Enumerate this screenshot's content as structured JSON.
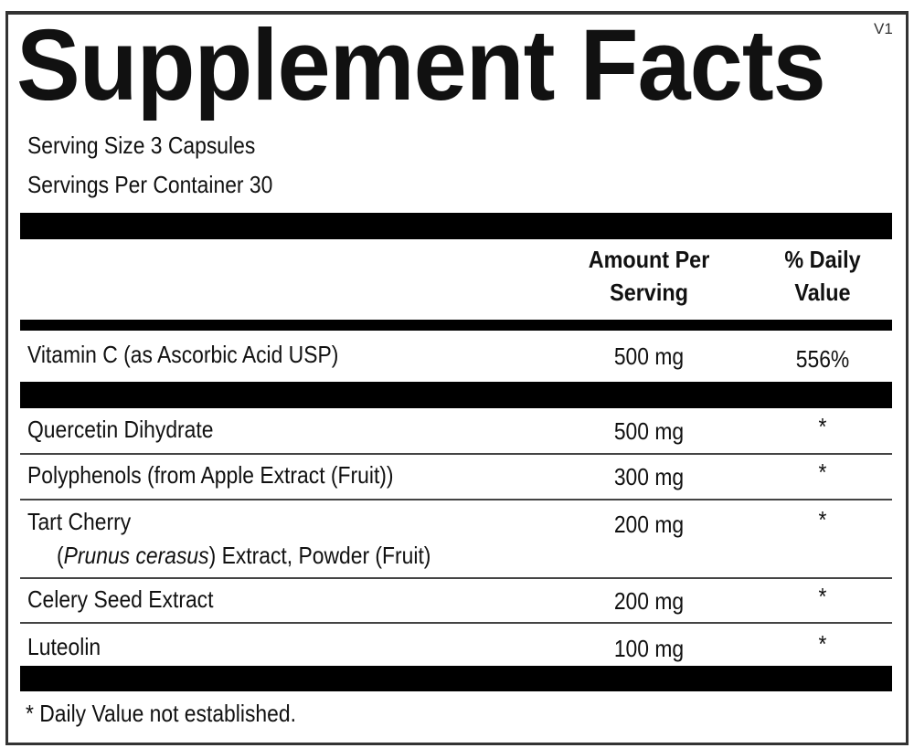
{
  "title": "Supplement Facts",
  "version": "V1",
  "serving_size": "Serving Size 3 Capsules",
  "servings_per_container": "Servings Per Container 30",
  "header": {
    "amount_line1": "Amount Per",
    "amount_line2": "Serving",
    "dv_line1": "% Daily",
    "dv_line2": "Value"
  },
  "rows": [
    {
      "name": "Vitamin C (as Ascorbic Acid USP)",
      "amount": "500 mg",
      "dv": "556%"
    },
    {
      "name": "Quercetin Dihydrate",
      "amount": "500 mg",
      "dv": "*"
    },
    {
      "name": "Polyphenols (from Apple Extract (Fruit))",
      "amount": "300 mg",
      "dv": "*"
    },
    {
      "name": "Tart Cherry",
      "name_paren_open": "(",
      "name_italic": "Prunus cerasus",
      "name_rest": ") Extract, Powder (Fruit)",
      "amount": "200 mg",
      "dv": "*"
    },
    {
      "name": "Celery Seed Extract",
      "amount": "200 mg",
      "dv": "*"
    },
    {
      "name": "Luteolin",
      "amount": "100 mg",
      "dv": "*"
    }
  ],
  "footnote": "* Daily Value not established."
}
